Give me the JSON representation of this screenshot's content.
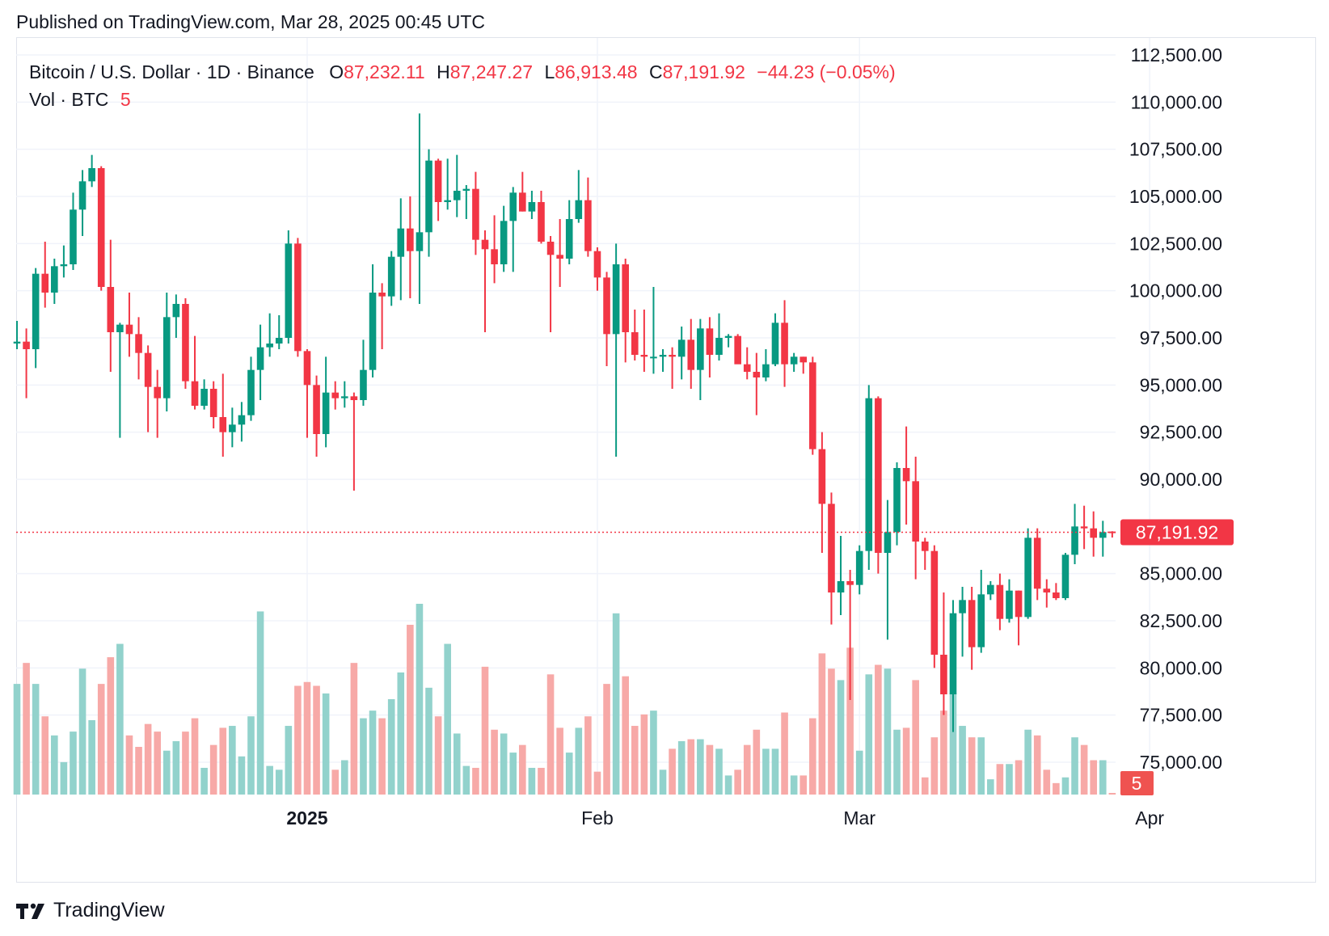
{
  "published": "Published on TradingView.com, Mar 28, 2025 00:45 UTC",
  "legend": {
    "symbol": "Bitcoin / U.S. Dollar · 1D · Binance",
    "o_label": "O",
    "o_value": "87,232.11",
    "h_label": "H",
    "h_value": "87,247.27",
    "l_label": "L",
    "l_value": "86,913.48",
    "c_label": "C",
    "c_value": "87,191.92",
    "change": "−44.23 (−0.05%)",
    "vol_label": "Vol · BTC",
    "vol_value": "5"
  },
  "footer": {
    "brand": "TradingView"
  },
  "colors": {
    "up": "#089981",
    "down": "#f23645",
    "up_vol": "#92d2cc",
    "down_vol": "#f7a9a7",
    "grid": "#f0f3fa",
    "axis_text": "#131722",
    "price_line": "#f23645"
  },
  "chart_data": {
    "type": "candlestick",
    "title": "Bitcoin / U.S. Dollar · 1D · Binance",
    "y_ticks": [
      "112,500.00",
      "110,000.00",
      "107,500.00",
      "105,000.00",
      "102,500.00",
      "100,000.00",
      "97,500.00",
      "95,000.00",
      "92,500.00",
      "90,000.00",
      "85,000.00",
      "82,500.00",
      "80,000.00",
      "77,500.00",
      "75,000.00"
    ],
    "y_tick_values": [
      112500,
      110000,
      107500,
      105000,
      102500,
      100000,
      97500,
      95000,
      92500,
      90000,
      85000,
      82500,
      80000,
      77500,
      75000
    ],
    "ylim": [
      73300,
      113500
    ],
    "x_ticks": [
      {
        "label": "2025",
        "bold": true,
        "date": "2025-01-01"
      },
      {
        "label": "Feb",
        "bold": false,
        "date": "2025-02-01"
      },
      {
        "label": "Mar",
        "bold": false,
        "date": "2025-03-01"
      },
      {
        "label": "Apr",
        "bold": false,
        "date": "2025-04-01"
      }
    ],
    "x_range": [
      "2024-12-01",
      "2025-04-04"
    ],
    "last_price": "87,191.92",
    "last_price_value": 87191.92,
    "last_volume": "5",
    "volume_max": 1.0,
    "candles": [
      {
        "d": "2024-12-01",
        "o": 97200,
        "h": 98400,
        "l": 96900,
        "c": 97300,
        "v": 0.58
      },
      {
        "d": "2024-12-02",
        "o": 97300,
        "h": 98000,
        "l": 94300,
        "c": 96900,
        "v": 0.69
      },
      {
        "d": "2024-12-03",
        "o": 96900,
        "h": 101200,
        "l": 95900,
        "c": 100900,
        "v": 0.58
      },
      {
        "d": "2024-12-04",
        "o": 100900,
        "h": 102600,
        "l": 99100,
        "c": 99900,
        "v": 0.41
      },
      {
        "d": "2024-12-05",
        "o": 99900,
        "h": 101700,
        "l": 99300,
        "c": 101300,
        "v": 0.31
      },
      {
        "d": "2024-12-06",
        "o": 101300,
        "h": 102400,
        "l": 100700,
        "c": 101400,
        "v": 0.17
      },
      {
        "d": "2024-12-07",
        "o": 101400,
        "h": 105200,
        "l": 101100,
        "c": 104300,
        "v": 0.33
      },
      {
        "d": "2024-12-08",
        "o": 104300,
        "h": 106400,
        "l": 102900,
        "c": 105800,
        "v": 0.66
      },
      {
        "d": "2024-12-09",
        "o": 105800,
        "h": 107200,
        "l": 105500,
        "c": 106500,
        "v": 0.39
      },
      {
        "d": "2024-12-10",
        "o": 106500,
        "h": 106600,
        "l": 100000,
        "c": 100200,
        "v": 0.58
      },
      {
        "d": "2024-12-11",
        "o": 100200,
        "h": 102700,
        "l": 95700,
        "c": 97800,
        "v": 0.72
      },
      {
        "d": "2024-12-12",
        "o": 97800,
        "h": 98300,
        "l": 92200,
        "c": 98200,
        "v": 0.79
      },
      {
        "d": "2024-12-13",
        "o": 98200,
        "h": 99900,
        "l": 96500,
        "c": 97700,
        "v": 0.31
      },
      {
        "d": "2024-12-14",
        "o": 97700,
        "h": 98600,
        "l": 95300,
        "c": 96700,
        "v": 0.25
      },
      {
        "d": "2024-12-15",
        "o": 96700,
        "h": 97100,
        "l": 92500,
        "c": 94900,
        "v": 0.37
      },
      {
        "d": "2024-12-16",
        "o": 94900,
        "h": 95800,
        "l": 92200,
        "c": 94300,
        "v": 0.33
      },
      {
        "d": "2024-12-17",
        "o": 94300,
        "h": 99900,
        "l": 93600,
        "c": 98600,
        "v": 0.23
      },
      {
        "d": "2024-12-18",
        "o": 98600,
        "h": 99800,
        "l": 97500,
        "c": 99300,
        "v": 0.28
      },
      {
        "d": "2024-12-19",
        "o": 99300,
        "h": 99600,
        "l": 94800,
        "c": 95200,
        "v": 0.33
      },
      {
        "d": "2024-12-20",
        "o": 95200,
        "h": 97600,
        "l": 93700,
        "c": 93900,
        "v": 0.4
      },
      {
        "d": "2024-12-21",
        "o": 93900,
        "h": 95300,
        "l": 93700,
        "c": 94800,
        "v": 0.14
      },
      {
        "d": "2024-12-22",
        "o": 94800,
        "h": 95200,
        "l": 92700,
        "c": 93300,
        "v": 0.26
      },
      {
        "d": "2024-12-23",
        "o": 93300,
        "h": 95600,
        "l": 91200,
        "c": 92500,
        "v": 0.35
      },
      {
        "d": "2024-12-24",
        "o": 92500,
        "h": 93800,
        "l": 91700,
        "c": 92900,
        "v": 0.36
      },
      {
        "d": "2024-12-25",
        "o": 92900,
        "h": 94100,
        "l": 92000,
        "c": 93400,
        "v": 0.2
      },
      {
        "d": "2024-12-26",
        "o": 93400,
        "h": 96500,
        "l": 93100,
        "c": 95800,
        "v": 0.41
      },
      {
        "d": "2024-12-27",
        "o": 95800,
        "h": 98200,
        "l": 94200,
        "c": 97000,
        "v": 0.96
      },
      {
        "d": "2024-12-28",
        "o": 97000,
        "h": 98800,
        "l": 96500,
        "c": 97200,
        "v": 0.15
      },
      {
        "d": "2024-12-29",
        "o": 97200,
        "h": 98700,
        "l": 96900,
        "c": 97500,
        "v": 0.13
      },
      {
        "d": "2024-12-30",
        "o": 97500,
        "h": 103200,
        "l": 97200,
        "c": 102500,
        "v": 0.36
      },
      {
        "d": "2024-12-31",
        "o": 102500,
        "h": 102800,
        "l": 96500,
        "c": 96800,
        "v": 0.57
      },
      {
        "d": "2025-01-01",
        "o": 96800,
        "h": 96900,
        "l": 92200,
        "c": 95000,
        "v": 0.59
      },
      {
        "d": "2025-01-02",
        "o": 95000,
        "h": 95500,
        "l": 91200,
        "c": 92400,
        "v": 0.57
      },
      {
        "d": "2025-01-03",
        "o": 92400,
        "h": 96500,
        "l": 91700,
        "c": 94600,
        "v": 0.53
      },
      {
        "d": "2025-01-04",
        "o": 94600,
        "h": 95200,
        "l": 93700,
        "c": 94300,
        "v": 0.13
      },
      {
        "d": "2025-01-05",
        "o": 94300,
        "h": 95200,
        "l": 93800,
        "c": 94400,
        "v": 0.18
      },
      {
        "d": "2025-01-06",
        "o": 94400,
        "h": 94600,
        "l": 89400,
        "c": 94200,
        "v": 0.69
      },
      {
        "d": "2025-01-07",
        "o": 94200,
        "h": 97400,
        "l": 93900,
        "c": 95800,
        "v": 0.4
      },
      {
        "d": "2025-01-08",
        "o": 95800,
        "h": 101400,
        "l": 95400,
        "c": 99900,
        "v": 0.44
      },
      {
        "d": "2025-01-09",
        "o": 99900,
        "h": 100400,
        "l": 96900,
        "c": 99700,
        "v": 0.4
      },
      {
        "d": "2025-01-10",
        "o": 99700,
        "h": 102100,
        "l": 99200,
        "c": 101800,
        "v": 0.5
      },
      {
        "d": "2025-01-11",
        "o": 101800,
        "h": 104900,
        "l": 99500,
        "c": 103300,
        "v": 0.64
      },
      {
        "d": "2025-01-12",
        "o": 103300,
        "h": 105000,
        "l": 99600,
        "c": 102100,
        "v": 0.89
      },
      {
        "d": "2025-01-13",
        "o": 102100,
        "h": 109400,
        "l": 99300,
        "c": 103100,
        "v": 1.0
      },
      {
        "d": "2025-01-14",
        "o": 103100,
        "h": 107500,
        "l": 101800,
        "c": 106900,
        "v": 0.56
      },
      {
        "d": "2025-01-15",
        "o": 106900,
        "h": 107000,
        "l": 103700,
        "c": 104700,
        "v": 0.41
      },
      {
        "d": "2025-01-16",
        "o": 104700,
        "h": 107000,
        "l": 104300,
        "c": 104800,
        "v": 0.79
      },
      {
        "d": "2025-01-17",
        "o": 104800,
        "h": 107200,
        "l": 103900,
        "c": 105300,
        "v": 0.32
      },
      {
        "d": "2025-01-18",
        "o": 105300,
        "h": 105600,
        "l": 103800,
        "c": 105400,
        "v": 0.15
      },
      {
        "d": "2025-01-19",
        "o": 105400,
        "h": 106300,
        "l": 101900,
        "c": 102700,
        "v": 0.14
      },
      {
        "d": "2025-01-20",
        "o": 102700,
        "h": 103200,
        "l": 97800,
        "c": 102200,
        "v": 0.67
      },
      {
        "d": "2025-01-21",
        "o": 102200,
        "h": 104000,
        "l": 100400,
        "c": 101400,
        "v": 0.34
      },
      {
        "d": "2025-01-22",
        "o": 101400,
        "h": 104500,
        "l": 101000,
        "c": 103700,
        "v": 0.32
      },
      {
        "d": "2025-01-23",
        "o": 103700,
        "h": 105500,
        "l": 101000,
        "c": 105200,
        "v": 0.22
      },
      {
        "d": "2025-01-24",
        "o": 105200,
        "h": 106300,
        "l": 104200,
        "c": 104200,
        "v": 0.26
      },
      {
        "d": "2025-01-25",
        "o": 104200,
        "h": 105300,
        "l": 103800,
        "c": 104700,
        "v": 0.14
      },
      {
        "d": "2025-01-26",
        "o": 104700,
        "h": 105300,
        "l": 102500,
        "c": 102600,
        "v": 0.14
      },
      {
        "d": "2025-01-27",
        "o": 102600,
        "h": 102900,
        "l": 97800,
        "c": 101900,
        "v": 0.63
      },
      {
        "d": "2025-01-28",
        "o": 101900,
        "h": 103800,
        "l": 100200,
        "c": 101700,
        "v": 0.35
      },
      {
        "d": "2025-01-29",
        "o": 101700,
        "h": 104800,
        "l": 101400,
        "c": 103800,
        "v": 0.22
      },
      {
        "d": "2025-01-30",
        "o": 103800,
        "h": 106400,
        "l": 103600,
        "c": 104800,
        "v": 0.35
      },
      {
        "d": "2025-01-31",
        "o": 104800,
        "h": 106000,
        "l": 101800,
        "c": 102100,
        "v": 0.41
      },
      {
        "d": "2025-02-01",
        "o": 102100,
        "h": 102300,
        "l": 100000,
        "c": 100700,
        "v": 0.12
      },
      {
        "d": "2025-02-02",
        "o": 100700,
        "h": 101000,
        "l": 96000,
        "c": 97700,
        "v": 0.58
      },
      {
        "d": "2025-02-03",
        "o": 97700,
        "h": 102500,
        "l": 91200,
        "c": 101400,
        "v": 0.95
      },
      {
        "d": "2025-02-04",
        "o": 101400,
        "h": 101700,
        "l": 96200,
        "c": 97800,
        "v": 0.62
      },
      {
        "d": "2025-02-05",
        "o": 97800,
        "h": 99000,
        "l": 96300,
        "c": 96600,
        "v": 0.36
      },
      {
        "d": "2025-02-06",
        "o": 96600,
        "h": 99000,
        "l": 95700,
        "c": 96500,
        "v": 0.42
      },
      {
        "d": "2025-02-07",
        "o": 96500,
        "h": 100200,
        "l": 95600,
        "c": 96500,
        "v": 0.44
      },
      {
        "d": "2025-02-08",
        "o": 96500,
        "h": 96900,
        "l": 95700,
        "c": 96600,
        "v": 0.13
      },
      {
        "d": "2025-02-09",
        "o": 96600,
        "h": 97000,
        "l": 94800,
        "c": 96500,
        "v": 0.24
      },
      {
        "d": "2025-02-10",
        "o": 96500,
        "h": 98100,
        "l": 95300,
        "c": 97400,
        "v": 0.28
      },
      {
        "d": "2025-02-11",
        "o": 97400,
        "h": 98500,
        "l": 94800,
        "c": 95800,
        "v": 0.29
      },
      {
        "d": "2025-02-12",
        "o": 95800,
        "h": 98500,
        "l": 94200,
        "c": 98000,
        "v": 0.29
      },
      {
        "d": "2025-02-13",
        "o": 98000,
        "h": 98600,
        "l": 95400,
        "c": 96600,
        "v": 0.26
      },
      {
        "d": "2025-02-14",
        "o": 96600,
        "h": 98800,
        "l": 96300,
        "c": 97500,
        "v": 0.24
      },
      {
        "d": "2025-02-15",
        "o": 97500,
        "h": 97700,
        "l": 97000,
        "c": 97600,
        "v": 0.1
      },
      {
        "d": "2025-02-16",
        "o": 97600,
        "h": 97700,
        "l": 96200,
        "c": 96100,
        "v": 0.13
      },
      {
        "d": "2025-02-17",
        "o": 96100,
        "h": 97000,
        "l": 95300,
        "c": 95700,
        "v": 0.26
      },
      {
        "d": "2025-02-18",
        "o": 95700,
        "h": 96700,
        "l": 93400,
        "c": 95400,
        "v": 0.34
      },
      {
        "d": "2025-02-19",
        "o": 95400,
        "h": 96900,
        "l": 95200,
        "c": 96100,
        "v": 0.24
      },
      {
        "d": "2025-02-20",
        "o": 96100,
        "h": 98800,
        "l": 96000,
        "c": 98300,
        "v": 0.24
      },
      {
        "d": "2025-02-21",
        "o": 98300,
        "h": 99500,
        "l": 94900,
        "c": 96100,
        "v": 0.43
      },
      {
        "d": "2025-02-22",
        "o": 96100,
        "h": 96700,
        "l": 95700,
        "c": 96500,
        "v": 0.1
      },
      {
        "d": "2025-02-23",
        "o": 96500,
        "h": 96500,
        "l": 95600,
        "c": 96200,
        "v": 0.1
      },
      {
        "d": "2025-02-24",
        "o": 96200,
        "h": 96500,
        "l": 91300,
        "c": 91600,
        "v": 0.4
      },
      {
        "d": "2025-02-25",
        "o": 91600,
        "h": 92500,
        "l": 86100,
        "c": 88700,
        "v": 0.74
      },
      {
        "d": "2025-02-26",
        "o": 88700,
        "h": 89300,
        "l": 82300,
        "c": 84000,
        "v": 0.66
      },
      {
        "d": "2025-02-27",
        "o": 84000,
        "h": 87000,
        "l": 82800,
        "c": 84600,
        "v": 0.6
      },
      {
        "d": "2025-02-28",
        "o": 84600,
        "h": 85200,
        "l": 78300,
        "c": 84400,
        "v": 0.77
      },
      {
        "d": "2025-03-01",
        "o": 84400,
        "h": 86500,
        "l": 83900,
        "c": 86200,
        "v": 0.23
      },
      {
        "d": "2025-03-02",
        "o": 86200,
        "h": 95000,
        "l": 85200,
        "c": 94300,
        "v": 0.63
      },
      {
        "d": "2025-03-03",
        "o": 94300,
        "h": 94400,
        "l": 85000,
        "c": 86100,
        "v": 0.68
      },
      {
        "d": "2025-03-04",
        "o": 86100,
        "h": 88900,
        "l": 81500,
        "c": 87200,
        "v": 0.66
      },
      {
        "d": "2025-03-05",
        "o": 87200,
        "h": 90900,
        "l": 86500,
        "c": 90600,
        "v": 0.34
      },
      {
        "d": "2025-03-06",
        "o": 90600,
        "h": 92800,
        "l": 87600,
        "c": 89900,
        "v": 0.35
      },
      {
        "d": "2025-03-07",
        "o": 89900,
        "h": 91200,
        "l": 84700,
        "c": 86700,
        "v": 0.6
      },
      {
        "d": "2025-03-08",
        "o": 86700,
        "h": 86900,
        "l": 85200,
        "c": 86200,
        "v": 0.09
      },
      {
        "d": "2025-03-09",
        "o": 86200,
        "h": 86500,
        "l": 80000,
        "c": 80700,
        "v": 0.3
      },
      {
        "d": "2025-03-10",
        "o": 80700,
        "h": 84000,
        "l": 77500,
        "c": 78600,
        "v": 0.44
      },
      {
        "d": "2025-03-11",
        "o": 78600,
        "h": 83600,
        "l": 76600,
        "c": 82900,
        "v": 0.53
      },
      {
        "d": "2025-03-12",
        "o": 82900,
        "h": 84300,
        "l": 80600,
        "c": 83600,
        "v": 0.36
      },
      {
        "d": "2025-03-13",
        "o": 83600,
        "h": 84300,
        "l": 79900,
        "c": 81100,
        "v": 0.3
      },
      {
        "d": "2025-03-14",
        "o": 81100,
        "h": 85200,
        "l": 80800,
        "c": 83900,
        "v": 0.3
      },
      {
        "d": "2025-03-15",
        "o": 83900,
        "h": 84600,
        "l": 83600,
        "c": 84400,
        "v": 0.08
      },
      {
        "d": "2025-03-16",
        "o": 84400,
        "h": 85000,
        "l": 82000,
        "c": 82600,
        "v": 0.16
      },
      {
        "d": "2025-03-17",
        "o": 82600,
        "h": 84700,
        "l": 82400,
        "c": 84100,
        "v": 0.16
      },
      {
        "d": "2025-03-18",
        "o": 84100,
        "h": 84100,
        "l": 81200,
        "c": 82700,
        "v": 0.18
      },
      {
        "d": "2025-03-19",
        "o": 82700,
        "h": 87400,
        "l": 82600,
        "c": 86900,
        "v": 0.34
      },
      {
        "d": "2025-03-20",
        "o": 86900,
        "h": 87400,
        "l": 83600,
        "c": 84200,
        "v": 0.31
      },
      {
        "d": "2025-03-21",
        "o": 84200,
        "h": 84700,
        "l": 83200,
        "c": 84000,
        "v": 0.13
      },
      {
        "d": "2025-03-22",
        "o": 84000,
        "h": 84500,
        "l": 83600,
        "c": 83700,
        "v": 0.06
      },
      {
        "d": "2025-03-23",
        "o": 83700,
        "h": 86100,
        "l": 83600,
        "c": 86000,
        "v": 0.09
      },
      {
        "d": "2025-03-24",
        "o": 86000,
        "h": 88700,
        "l": 85500,
        "c": 87500,
        "v": 0.3
      },
      {
        "d": "2025-03-25",
        "o": 87500,
        "h": 88600,
        "l": 86300,
        "c": 87400,
        "v": 0.26
      },
      {
        "d": "2025-03-26",
        "o": 87400,
        "h": 88300,
        "l": 85900,
        "c": 86900,
        "v": 0.18
      },
      {
        "d": "2025-03-27",
        "o": 86900,
        "h": 87800,
        "l": 85900,
        "c": 87200,
        "v": 0.18
      },
      {
        "d": "2025-03-28",
        "o": 87232.11,
        "h": 87247.27,
        "l": 86913.48,
        "c": 87191.92,
        "v": 0.008
      }
    ]
  }
}
